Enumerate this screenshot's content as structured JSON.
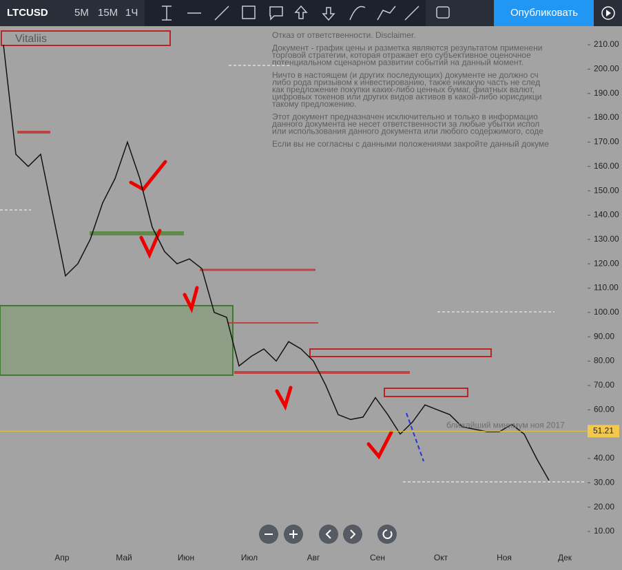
{
  "toolbar": {
    "symbol": "LTCUSD",
    "intervals": [
      "5M",
      "15M",
      "1Ч"
    ],
    "publish": "Опубликовать"
  },
  "chart": {
    "watermark": "Vitaliis",
    "disclaimer": [
      "Отказ от ответственности. Disclaimer.",
      "Документ - график цены и разметка являются результатом применени",
      "торговой стратегии, которая отражает его субъективное оценочное",
      "потенциальном сценарном развитии событий на данный момент.",
      "Ничто в настоящем (и других последующих) документе не должно сч",
      "либо рода призывом к инвестированию, также никакую часть не след",
      "как предложение покупки каких-либо ценных бумаг, фиатных валют,",
      "цифровых токенов или других видов активов в какой-либо юрисдикци",
      "такому предложению.",
      "Этот документ предназначен исключительно и только в информацио",
      "данного документа не несет ответственности за любые убытки испол",
      "или использования данного документа или любого содержимого, соде",
      "Если вы не согласны с данными положениями закройте данный докуме"
    ],
    "ylim": [
      10,
      210
    ],
    "yticks": [
      {
        "value": 210,
        "label": "210.00"
      },
      {
        "value": 200,
        "label": "200.00"
      },
      {
        "value": 190,
        "label": "190.00"
      },
      {
        "value": 180,
        "label": "180.00"
      },
      {
        "value": 170,
        "label": "170.00"
      },
      {
        "value": 160,
        "label": "160.00"
      },
      {
        "value": 150,
        "label": "150.00"
      },
      {
        "value": 140,
        "label": "140.00"
      },
      {
        "value": 130,
        "label": "130.00"
      },
      {
        "value": 120,
        "label": "120.00"
      },
      {
        "value": 110,
        "label": "110.00"
      },
      {
        "value": 100,
        "label": "100.00"
      },
      {
        "value": 90,
        "label": "90.00"
      },
      {
        "value": 80,
        "label": "80.00"
      },
      {
        "value": 70,
        "label": "70.00"
      },
      {
        "value": 60,
        "label": "60.00"
      },
      {
        "value": 50,
        "label": "50.00"
      },
      {
        "value": 40,
        "label": "40.00"
      },
      {
        "value": 30,
        "label": "30.00"
      },
      {
        "value": 20,
        "label": "20.00"
      },
      {
        "value": 10,
        "label": "10.00"
      }
    ],
    "months": [
      "Апр",
      "Май",
      "Июн",
      "Июл",
      "Авг",
      "Сен",
      "Окт",
      "Ноя",
      "Дек"
    ],
    "price_line": 51.21,
    "annotation": "ближайший минимум ноя 2017",
    "series_values": [
      210,
      165,
      160,
      165,
      140,
      115,
      120,
      130,
      145,
      155,
      170,
      155,
      135,
      125,
      120,
      122,
      118,
      100,
      98,
      78,
      82,
      85,
      80,
      88,
      85,
      80,
      70,
      58,
      56,
      57,
      65,
      58,
      50,
      55,
      62,
      60,
      58,
      53,
      52,
      51,
      51,
      54,
      50,
      40,
      31
    ]
  }
}
